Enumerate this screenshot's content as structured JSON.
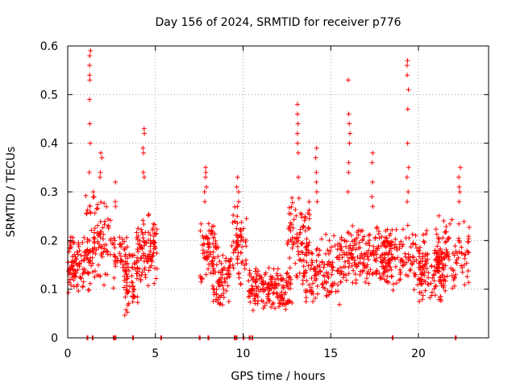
{
  "chart_data": {
    "type": "scatter",
    "title": "Day 156 of 2024, SRMTID for receiver p776",
    "xlabel": "GPS time / hours",
    "ylabel": "SRMTID / TECUs",
    "xlim": [
      0,
      24
    ],
    "ylim": [
      0,
      0.6
    ],
    "xticks": [
      "0",
      "5",
      "10",
      "15",
      "20"
    ],
    "yticks": [
      "0",
      "0.1",
      "0.2",
      "0.3",
      "0.4",
      "0.5",
      "0.6"
    ],
    "grid": true,
    "marker": "+",
    "series_color": "#ff0000",
    "clusters": [
      {
        "x0": 0.0,
        "x1": 1.3,
        "ylo": 0.08,
        "yhi": 0.22,
        "n": 110
      },
      {
        "x0": 1.0,
        "x1": 1.45,
        "ylo": 0.25,
        "yhi": 0.3,
        "n": 10
      },
      {
        "x0": 1.3,
        "x1": 2.5,
        "ylo": 0.08,
        "yhi": 0.3,
        "n": 75
      },
      {
        "x0": 2.5,
        "x1": 3.5,
        "ylo": 0.1,
        "yhi": 0.22,
        "n": 45
      },
      {
        "x0": 3.2,
        "x1": 4.0,
        "ylo": 0.04,
        "yhi": 0.2,
        "n": 60
      },
      {
        "x0": 3.9,
        "x1": 5.1,
        "ylo": 0.1,
        "yhi": 0.26,
        "n": 100
      },
      {
        "x0": 7.5,
        "x1": 8.5,
        "ylo": 0.1,
        "yhi": 0.25,
        "n": 70
      },
      {
        "x0": 8.3,
        "x1": 9.3,
        "ylo": 0.05,
        "yhi": 0.2,
        "n": 70
      },
      {
        "x0": 9.3,
        "x1": 10.2,
        "ylo": 0.1,
        "yhi": 0.28,
        "n": 60
      },
      {
        "x0": 10.3,
        "x1": 12.8,
        "ylo": 0.05,
        "yhi": 0.15,
        "n": 170
      },
      {
        "x0": 12.5,
        "x1": 13.8,
        "ylo": 0.1,
        "yhi": 0.3,
        "n": 90
      },
      {
        "x0": 13.5,
        "x1": 15.5,
        "ylo": 0.06,
        "yhi": 0.22,
        "n": 120
      },
      {
        "x0": 15.5,
        "x1": 18.5,
        "ylo": 0.1,
        "yhi": 0.24,
        "n": 200
      },
      {
        "x0": 18.0,
        "x1": 20.5,
        "ylo": 0.08,
        "yhi": 0.24,
        "n": 130
      },
      {
        "x0": 20.0,
        "x1": 21.5,
        "ylo": 0.06,
        "yhi": 0.2,
        "n": 90
      },
      {
        "x0": 21.0,
        "x1": 22.9,
        "ylo": 0.08,
        "yhi": 0.26,
        "n": 110
      }
    ],
    "spikes": [
      {
        "x": 1.25,
        "ys": [
          0.59,
          0.58,
          0.56,
          0.54,
          0.53,
          0.49,
          0.44,
          0.4,
          0.34
        ]
      },
      {
        "x": 1.45,
        "ys": [
          0.3,
          0.29
        ]
      },
      {
        "x": 1.9,
        "ys": [
          0.38,
          0.37,
          0.34,
          0.33
        ]
      },
      {
        "x": 2.7,
        "ys": [
          0.32,
          0.28,
          0.27
        ]
      },
      {
        "x": 4.35,
        "ys": [
          0.43,
          0.42,
          0.39,
          0.38,
          0.34,
          0.33
        ]
      },
      {
        "x": 7.85,
        "ys": [
          0.35,
          0.34,
          0.33,
          0.31,
          0.3,
          0.28
        ]
      },
      {
        "x": 9.7,
        "ys": [
          0.33,
          0.31,
          0.3,
          0.28,
          0.27,
          0.25
        ]
      },
      {
        "x": 13.1,
        "ys": [
          0.48,
          0.46,
          0.44,
          0.42,
          0.4,
          0.38,
          0.33
        ]
      },
      {
        "x": 14.2,
        "ys": [
          0.39,
          0.37,
          0.34,
          0.32,
          0.3,
          0.28
        ]
      },
      {
        "x": 16.05,
        "ys": [
          0.53,
          0.46,
          0.44,
          0.42,
          0.4,
          0.36,
          0.34,
          0.3
        ]
      },
      {
        "x": 17.4,
        "ys": [
          0.38,
          0.36,
          0.32,
          0.29,
          0.27
        ]
      },
      {
        "x": 19.4,
        "ys": [
          0.57,
          0.56,
          0.54,
          0.51,
          0.47,
          0.4,
          0.35,
          0.33,
          0.3,
          0.28
        ]
      },
      {
        "x": 22.35,
        "ys": [
          0.35,
          0.33,
          0.31,
          0.3,
          0.28
        ]
      }
    ],
    "zero_points": [
      1.1,
      1.4,
      2.6,
      2.7,
      3.7,
      5.3,
      7.5,
      8.0,
      9.5,
      9.6,
      10.0,
      10.35,
      10.5,
      18.5,
      22.1
    ]
  }
}
